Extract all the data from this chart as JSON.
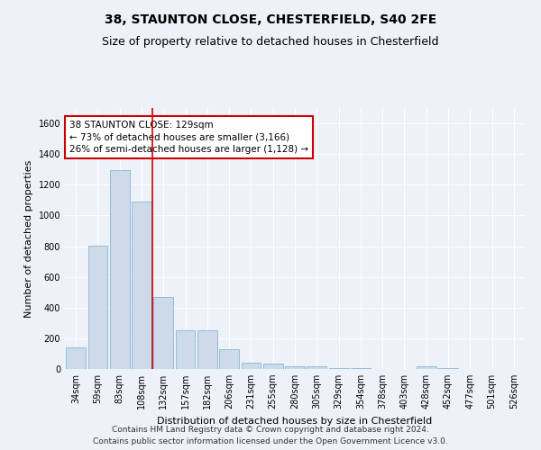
{
  "title_line1": "38, STAUNTON CLOSE, CHESTERFIELD, S40 2FE",
  "title_line2": "Size of property relative to detached houses in Chesterfield",
  "xlabel": "Distribution of detached houses by size in Chesterfield",
  "ylabel": "Number of detached properties",
  "bar_values": [
    140,
    805,
    1295,
    1090,
    470,
    250,
    250,
    130,
    40,
    35,
    20,
    20,
    5,
    5,
    0,
    0,
    20,
    5,
    0,
    0,
    0
  ],
  "bar_labels": [
    "34sqm",
    "59sqm",
    "83sqm",
    "108sqm",
    "132sqm",
    "157sqm",
    "182sqm",
    "206sqm",
    "231sqm",
    "255sqm",
    "280sqm",
    "305sqm",
    "329sqm",
    "354sqm",
    "378sqm",
    "403sqm",
    "428sqm",
    "452sqm",
    "477sqm",
    "501sqm",
    "526sqm"
  ],
  "bar_color": "#cddaea",
  "bar_edge_color": "#8ab4d4",
  "property_line_index": 4,
  "annotation_line1": "38 STAUNTON CLOSE: 129sqm",
  "annotation_line2": "← 73% of detached houses are smaller (3,166)",
  "annotation_line3": "26% of semi-detached houses are larger (1,128) →",
  "annotation_box_facecolor": "#ffffff",
  "annotation_box_edgecolor": "#cc0000",
  "red_line_color": "#cc0000",
  "ylim": [
    0,
    1700
  ],
  "yticks": [
    0,
    200,
    400,
    600,
    800,
    1000,
    1200,
    1400,
    1600
  ],
  "footer_text": "Contains HM Land Registry data © Crown copyright and database right 2024.\nContains public sector information licensed under the Open Government Licence v3.0.",
  "bg_color": "#edf2f9",
  "grid_color": "#ffffff",
  "title_fontsize": 10,
  "subtitle_fontsize": 9,
  "axis_label_fontsize": 8,
  "tick_fontsize": 7,
  "annotation_fontsize": 7.5,
  "footer_fontsize": 6.5
}
